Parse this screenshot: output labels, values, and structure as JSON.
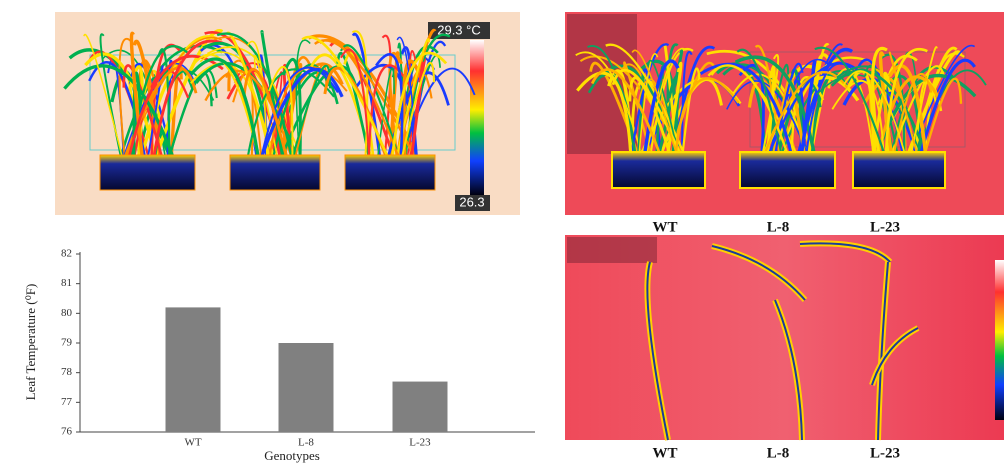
{
  "chart_data": {
    "type": "bar",
    "xlabel": "Genotypes",
    "ylabel": "Leaf Temperature (⁰F)",
    "categories": [
      "WT",
      "L-8",
      "L-23"
    ],
    "values": [
      80.2,
      79.0,
      77.7
    ],
    "color": "#808080",
    "ylim": [
      76,
      82
    ],
    "yticks": [
      76,
      77,
      78,
      79,
      80,
      81,
      82
    ]
  },
  "images": {
    "top_left": {
      "max_label": "29.3 °C",
      "min_label": "26.3"
    },
    "top_right_labels": [
      "WT",
      "L-8",
      "L-23"
    ],
    "bottom_right_labels": [
      "WT",
      "L-8",
      "L-23"
    ]
  }
}
